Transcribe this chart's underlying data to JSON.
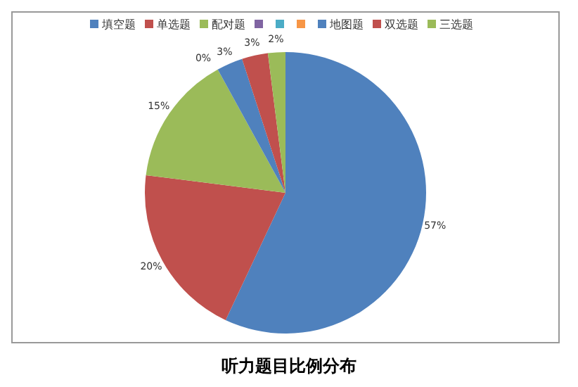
{
  "chart_data": {
    "type": "pie",
    "title": "听力题目比例分布",
    "categories": [
      "填空题",
      "单选题",
      "配对题",
      null,
      null,
      null,
      "地图题",
      "双选题",
      "三选题"
    ],
    "values": [
      57,
      20,
      15,
      0,
      0,
      0,
      3,
      3,
      2
    ],
    "colors": [
      "#4f81bd",
      "#c0504d",
      "#9bbb59",
      "#8064a2",
      "#4bacc6",
      "#f79646",
      "#4f81bd",
      "#c0504d",
      "#9bbb59"
    ],
    "value_labels": [
      "57%",
      "20%",
      "15%",
      "0%",
      null,
      null,
      "3%",
      "3%",
      "2%"
    ],
    "legend": "top"
  }
}
